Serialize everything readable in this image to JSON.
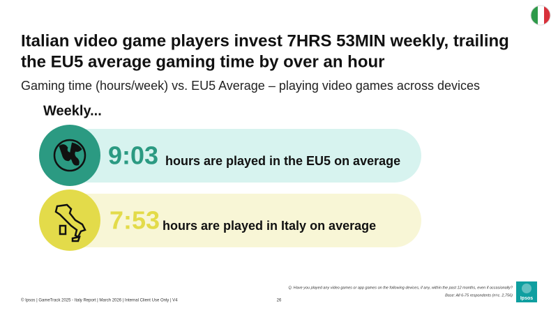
{
  "header": {
    "title_lines": [
      "Italian video game players invest 7HRS 53MIN weekly, trailing",
      "the EU5 average gaming time by over an hour"
    ],
    "subtitle": "Gaming time (hours/week) vs. EU5 Average – playing video games across devices"
  },
  "section_label": "Weekly...",
  "rows": [
    {
      "value": "9:03",
      "text": "hours are played in the EU5 on average"
    },
    {
      "value": "7:53",
      "text": "hours are played in Italy on average"
    }
  ],
  "footer": {
    "copyright": "© Ipsos | GameTrack 2025 - Italy Report | March 2026 | Internal Client Use Only | V4",
    "page": "26",
    "question": "Q. Have you played any video games or app games on the following devices, if any, within the past 12 months, even if occasionally?",
    "base": "Base: All 6-75 respondents (n=c. 2,756)",
    "logo": "Ipsos"
  }
}
